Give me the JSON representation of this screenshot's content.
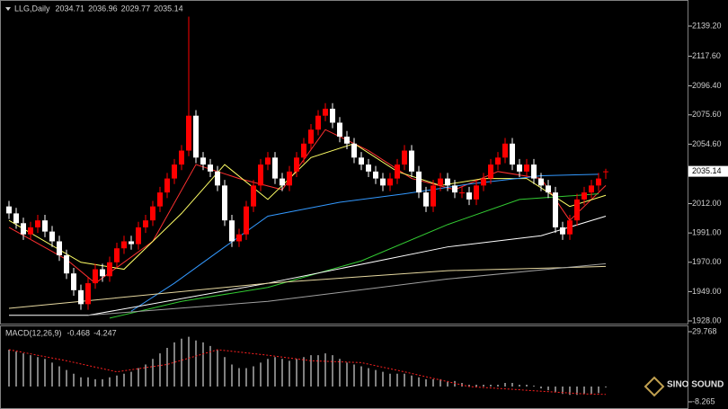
{
  "chart_data": [
    {
      "type": "candlestick",
      "title": "LLG,Daily",
      "header_values": [
        2034.71,
        2036.96,
        2029.77,
        2035.14
      ],
      "open": [
        2010,
        2005,
        1998,
        1990,
        1995,
        2000,
        1992,
        1985,
        1975,
        1962,
        1950,
        1940,
        1955,
        1965,
        1960,
        1970,
        1980,
        1985,
        1983,
        1995,
        2000,
        2010,
        2020,
        2030,
        2040,
        2050,
        2075,
        2045,
        2040,
        2035,
        2025,
        2000,
        1985,
        1990,
        2010,
        2025,
        2040,
        2045,
        2030,
        2025,
        2035,
        2045,
        2055,
        2065,
        2075,
        2080,
        2070,
        2060,
        2055,
        2045,
        2040,
        2035,
        2030,
        2025,
        2030,
        2040,
        2050,
        2035,
        2020,
        2010,
        2025,
        2030,
        2025,
        2020,
        2020,
        2015,
        2025,
        2030,
        2040,
        2045,
        2055,
        2040,
        2035,
        2040,
        2030,
        2025,
        2020,
        1995,
        1990,
        2000,
        2015,
        2020,
        2025,
        2034.71
      ],
      "high": [
        2014,
        2009,
        2002,
        1999,
        2004,
        2004,
        1996,
        1989,
        1979,
        1966,
        1954,
        1959,
        1969,
        1969,
        1974,
        1984,
        1989,
        1989,
        1999,
        2004,
        2014,
        2024,
        2034,
        2044,
        2054,
        2146,
        2079,
        2049,
        2044,
        2039,
        2029,
        2004,
        1994,
        2014,
        2029,
        2044,
        2049,
        2049,
        2034,
        2039,
        2049,
        2059,
        2069,
        2079,
        2084,
        2084,
        2074,
        2064,
        2059,
        2049,
        2044,
        2039,
        2034,
        2034,
        2044,
        2054,
        2054,
        2039,
        2024,
        2029,
        2034,
        2034,
        2029,
        2024,
        2024,
        2029,
        2034,
        2044,
        2049,
        2059,
        2059,
        2044,
        2044,
        2044,
        2034,
        2029,
        2024,
        1999,
        2004,
        2019,
        2024,
        2029,
        2034,
        2036.96
      ],
      "low": [
        2001,
        1994,
        1986,
        1986,
        1991,
        1988,
        1981,
        1971,
        1958,
        1946,
        1936,
        1936,
        1951,
        1956,
        1956,
        1966,
        1976,
        1979,
        1979,
        1991,
        1996,
        2006,
        2016,
        2026,
        2036,
        2046,
        2041,
        2036,
        2031,
        2021,
        1996,
        1981,
        1981,
        1986,
        2006,
        2021,
        2036,
        2026,
        2021,
        2021,
        2031,
        2041,
        2051,
        2061,
        2071,
        2066,
        2056,
        2051,
        2041,
        2036,
        2031,
        2026,
        2021,
        2021,
        2026,
        2036,
        2031,
        2016,
        2006,
        2006,
        2021,
        2021,
        2016,
        2016,
        2011,
        2011,
        2021,
        2026,
        2036,
        2041,
        2036,
        2031,
        2031,
        2026,
        2021,
        2016,
        1991,
        1986,
        1986,
        1996,
        2011,
        2016,
        2021,
        2029.77
      ],
      "close": [
        2005,
        1998,
        1990,
        1995,
        2000,
        1992,
        1985,
        1975,
        1962,
        1950,
        1940,
        1955,
        1965,
        1960,
        1970,
        1980,
        1985,
        1983,
        1995,
        2000,
        2010,
        2020,
        2030,
        2040,
        2050,
        2075,
        2045,
        2040,
        2035,
        2025,
        2000,
        1985,
        1990,
        2010,
        2025,
        2040,
        2045,
        2030,
        2025,
        2035,
        2045,
        2055,
        2065,
        2075,
        2080,
        2070,
        2060,
        2055,
        2045,
        2040,
        2035,
        2030,
        2025,
        2030,
        2040,
        2050,
        2035,
        2020,
        2010,
        2025,
        2030,
        2025,
        2020,
        2020,
        2015,
        2025,
        2030,
        2040,
        2045,
        2055,
        2040,
        2035,
        2040,
        2030,
        2025,
        2020,
        1995,
        1990,
        2000,
        2015,
        2020,
        2025,
        2030,
        2035.14
      ],
      "up_color": "#ff0000",
      "down_color": "#ffffff",
      "ylim": [
        1928,
        2139.2
      ],
      "yticks": [
        {
          "value": 2139.2,
          "label": "2139.20"
        },
        {
          "value": 2117.6,
          "label": "2117.60"
        },
        {
          "value": 2096.4,
          "label": "2096.40"
        },
        {
          "value": 2075.6,
          "label": "2075.60"
        },
        {
          "value": 2054.6,
          "label": "2054.60"
        },
        {
          "value": 2012,
          "label": "2012.00"
        },
        {
          "value": 1991,
          "label": "1991.00"
        },
        {
          "value": 1970,
          "label": "1970.00"
        },
        {
          "value": 1949,
          "label": "1949.00"
        },
        {
          "value": 1928,
          "label": "1928.00"
        }
      ],
      "series": [
        {
          "color": "#ff3030",
          "x": [
            0,
            8,
            12,
            20,
            26,
            32,
            38,
            44,
            50,
            56,
            62,
            68,
            74,
            78,
            83
          ],
          "values": [
            1995,
            1972,
            1955,
            1985,
            2040,
            2030,
            2022,
            2065,
            2050,
            2030,
            2022,
            2035,
            2030,
            2000,
            2025
          ]
        },
        {
          "color": "#ffff66",
          "x": [
            0,
            10,
            16,
            24,
            30,
            36,
            42,
            48,
            54,
            60,
            66,
            72,
            78,
            83
          ],
          "values": [
            2000,
            1970,
            1965,
            2005,
            2040,
            2015,
            2045,
            2055,
            2035,
            2025,
            2030,
            2030,
            2010,
            2018
          ]
        },
        {
          "color": "#3399ff",
          "x": [
            17,
            23,
            30,
            36,
            46,
            55,
            64,
            74,
            82
          ],
          "values": [
            1935,
            1955,
            1981,
            2003,
            2013,
            2019,
            2026,
            2032,
            2033
          ]
        },
        {
          "color": "#33cc33",
          "x": [
            14,
            24,
            36,
            49,
            61,
            71,
            82
          ],
          "values": [
            1930,
            1942,
            1952,
            1971,
            1997,
            2015,
            2019
          ]
        },
        {
          "color": "#ffffff",
          "x": [
            0,
            11,
            36,
            61,
            74,
            83
          ],
          "values": [
            1932,
            1932,
            1955,
            1981,
            1989,
            2003
          ]
        },
        {
          "color": "#e6d8a0",
          "x": [
            0,
            36,
            61,
            83
          ],
          "values": [
            1937,
            1955,
            1964,
            1967
          ]
        },
        {
          "color": "#a0a0a0",
          "x": [
            11,
            36,
            61,
            83
          ],
          "values": [
            1932,
            1942,
            1958,
            1969
          ]
        }
      ]
    },
    {
      "type": "macd",
      "title": "MACD(12,26,9)",
      "header_values": [
        -0.468,
        -4.247
      ],
      "values": [
        20,
        19,
        18,
        17,
        16,
        15,
        13,
        11,
        9,
        7,
        5,
        5,
        4,
        4,
        5,
        6,
        7,
        8,
        10,
        12,
        15,
        18,
        21,
        24,
        26,
        27,
        25,
        24,
        22,
        20,
        16,
        12,
        10,
        10,
        11,
        13,
        15,
        16,
        15,
        14,
        15,
        16,
        17,
        17,
        18,
        17,
        15,
        13,
        12,
        11,
        10,
        9,
        8,
        7,
        7,
        7,
        6,
        5,
        4,
        4,
        4,
        3,
        3,
        2,
        1,
        1,
        1,
        1,
        1,
        2,
        2,
        1,
        1,
        0.5,
        -1,
        -2,
        -3,
        -4,
        -4.5,
        -4.5,
        -4,
        -4,
        -3.5,
        -0.468
      ],
      "color": "#ffffff",
      "signal": {
        "color": "#ff2020",
        "x": [
          0,
          8,
          15,
          22,
          29,
          36,
          42,
          49,
          55,
          64,
          72,
          80,
          83
        ],
        "values": [
          20,
          14,
          8,
          12,
          20,
          17,
          14,
          13,
          8,
          0,
          -2,
          -4,
          -4.247
        ]
      },
      "ylim": [
        -8.265,
        29.768
      ],
      "yticks": [
        29.768,
        -8.265
      ]
    },
    {
      "type": "watermark",
      "title": "SINO SOUND"
    }
  ]
}
